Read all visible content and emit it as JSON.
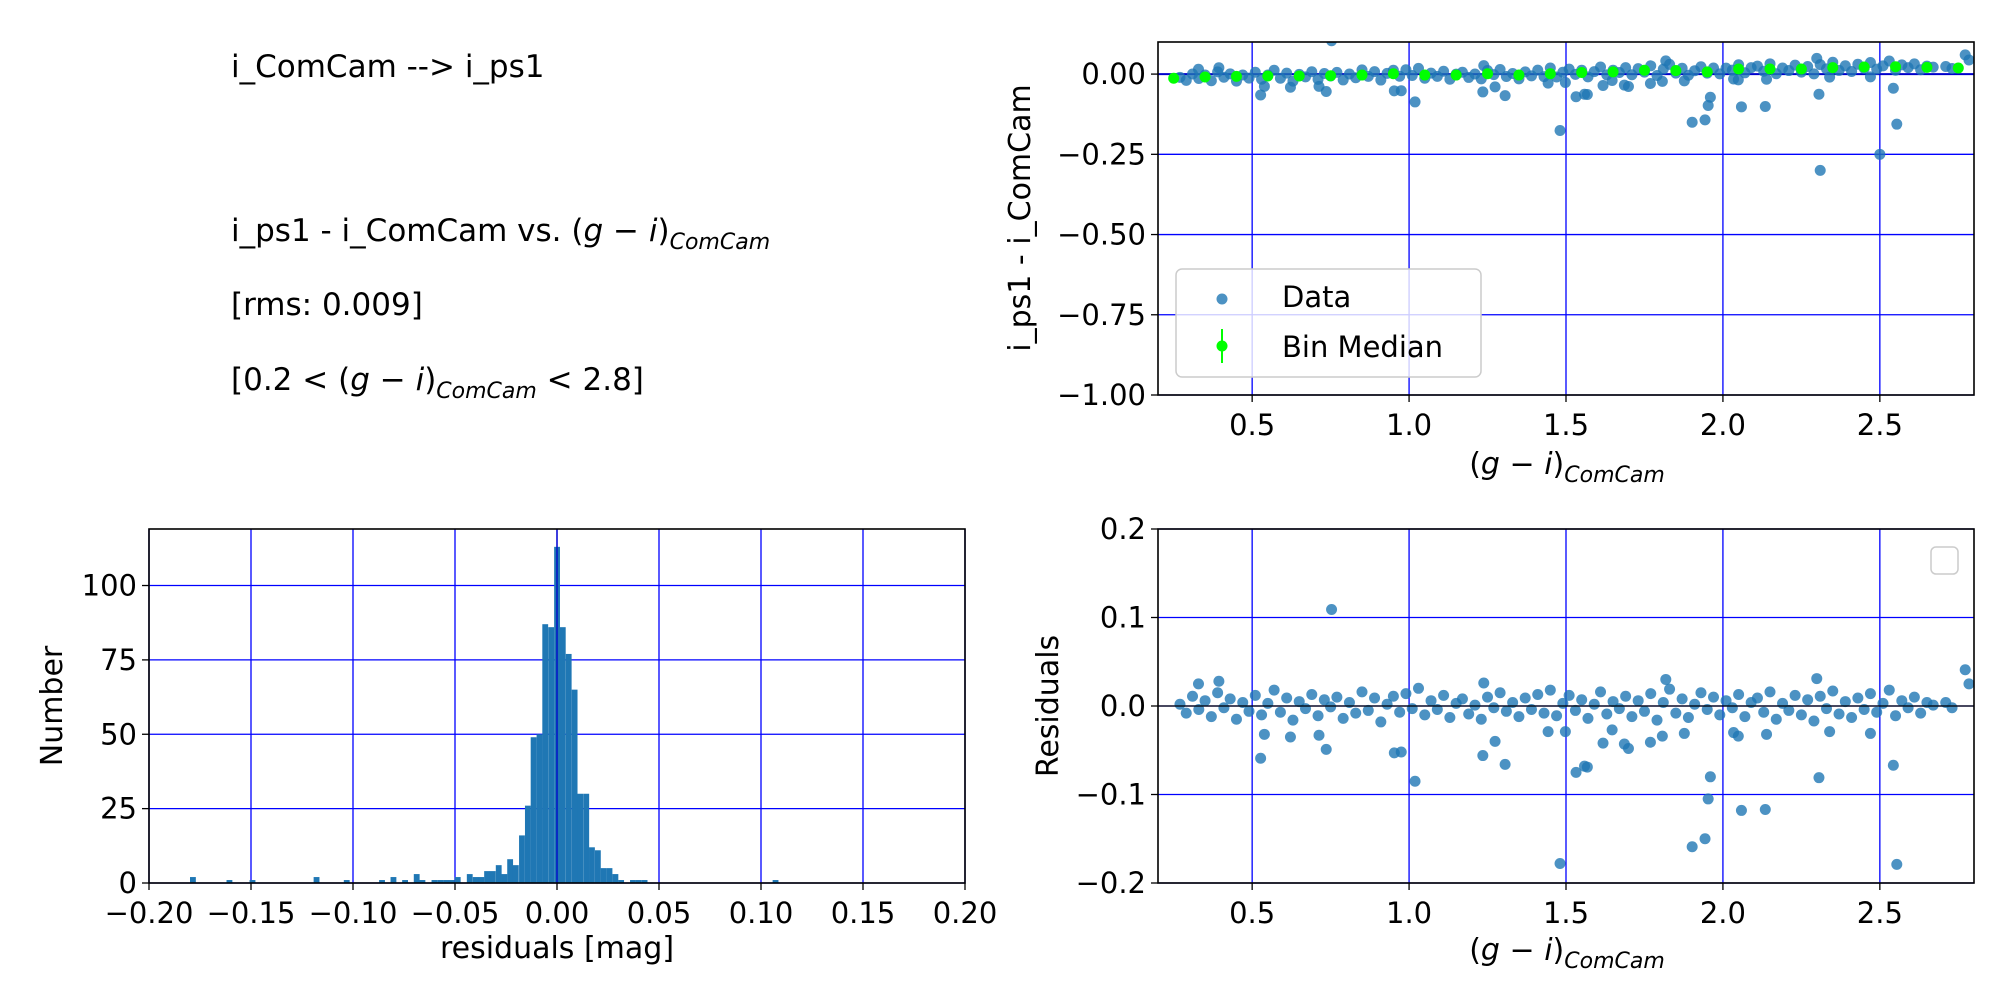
{
  "info_text": {
    "line1": "i_ComCam --> i_ps1",
    "line2_prefix": "i_ps1 - i_ComCam vs. ",
    "rms": "[rms: 0.009]",
    "range_prefix": "[0.2 < ",
    "range_suffix": " < 2.8]",
    "color_g": "g",
    "color_minus": " − ",
    "color_i": "i",
    "color_sub": "ComCam"
  },
  "colors": {
    "points": "#1f77b4",
    "median": "#00ff00",
    "grid": "#0000ff",
    "bars": "#1f77b4"
  },
  "chart_data": [
    {
      "type": "scatter",
      "panel": "top-right",
      "xlabel": "(g − i)ComCam",
      "ylabel": "i_ps1 - i_ComCam",
      "xlim": [
        0.2,
        2.8
      ],
      "ylim": [
        -1.0,
        0.1
      ],
      "xticks": [
        "0.5",
        "1.0",
        "1.5",
        "2.0",
        "2.5"
      ],
      "xtick_values": [
        0.5,
        1.0,
        1.5,
        2.0,
        2.5
      ],
      "yticks": [
        "0.00",
        "−0.25",
        "−0.50",
        "−0.75",
        "−1.00"
      ],
      "ytick_values": [
        0.0,
        -0.25,
        -0.5,
        -0.75,
        -1.0
      ],
      "grid": true,
      "legend": {
        "placement": "lower-left",
        "entries": [
          "Data",
          "Bin Median"
        ]
      },
      "bin_median": {
        "x": [
          0.25,
          0.35,
          0.45,
          0.55,
          0.65,
          0.75,
          0.85,
          0.95,
          1.05,
          1.15,
          1.25,
          1.35,
          1.45,
          1.55,
          1.65,
          1.75,
          1.85,
          1.95,
          2.05,
          2.15,
          2.25,
          2.35,
          2.45,
          2.55,
          2.65,
          2.75
        ],
        "y": [
          -0.013,
          -0.009,
          -0.007,
          -0.006,
          -0.006,
          -0.005,
          -0.003,
          0.001,
          -0.003,
          -0.003,
          0.001,
          -0.003,
          0.001,
          0.005,
          0.007,
          0.012,
          0.011,
          0.007,
          0.016,
          0.016,
          0.016,
          0.02,
          0.022,
          0.023,
          0.021,
          0.019
        ]
      },
      "extra_points": [
        [
          2.31,
          -0.3
        ],
        [
          2.5,
          -0.25
        ]
      ],
      "note": "Data points are the residual points below plus the bin median trend"
    },
    {
      "type": "bar",
      "panel": "bottom-left",
      "xlabel": "residuals [mag]",
      "ylabel": "Number",
      "xlim": [
        -0.2,
        0.2
      ],
      "ylim": [
        0,
        119
      ],
      "xticks": [
        "−0.20",
        "−0.15",
        "−0.10",
        "−0.05",
        "0.00",
        "0.05",
        "0.10",
        "0.15",
        "0.20"
      ],
      "xtick_values": [
        -0.2,
        -0.15,
        -0.1,
        -0.05,
        0.0,
        0.05,
        0.1,
        0.15,
        0.2
      ],
      "yticks": [
        "0",
        "25",
        "50",
        "75",
        "100"
      ],
      "ytick_values": [
        0,
        25,
        50,
        75,
        100
      ],
      "grid": true,
      "bin_width": 0.00286,
      "bin_left": [
        -0.1799,
        -0.162,
        -0.1507,
        -0.1193,
        -0.1045,
        -0.0872,
        -0.0816,
        -0.0759,
        -0.0702,
        -0.0674,
        -0.0615,
        -0.0586,
        -0.0558,
        -0.053,
        -0.0501,
        -0.0442,
        -0.0413,
        -0.0385,
        -0.0357,
        -0.0329,
        -0.03,
        -0.0272,
        -0.0244,
        -0.0216,
        -0.0186,
        -0.0157,
        -0.0129,
        -0.01,
        -0.0072,
        -0.0043,
        -0.0014,
        0.0014,
        0.0043,
        0.0072,
        0.01,
        0.0129,
        0.0157,
        0.0186,
        0.0214,
        0.0243,
        0.0272,
        0.03,
        0.0358,
        0.0386,
        0.0415,
        0.1057
      ],
      "counts": [
        2,
        1,
        1,
        2,
        1,
        1,
        2,
        1,
        3,
        1,
        1,
        1,
        1,
        1,
        2,
        3,
        2,
        2,
        4,
        4,
        6,
        3,
        8,
        6,
        16,
        26,
        49,
        50,
        87,
        86,
        113,
        86,
        77,
        65,
        30,
        30,
        12,
        11,
        5,
        5,
        3,
        1,
        1,
        1,
        1,
        1
      ]
    },
    {
      "type": "scatter",
      "panel": "bottom-right",
      "xlabel": "(g − i)ComCam",
      "ylabel": "Residuals",
      "xlim": [
        0.2,
        2.8
      ],
      "ylim": [
        -0.2,
        0.2
      ],
      "xticks": [
        "0.5",
        "1.0",
        "1.5",
        "2.0",
        "2.5"
      ],
      "xtick_values": [
        0.5,
        1.0,
        1.5,
        2.0,
        2.5
      ],
      "yticks": [
        "0.2",
        "0.1",
        "0.0",
        "−0.1",
        "−0.2"
      ],
      "ytick_values": [
        0.2,
        0.1,
        0.0,
        -0.1,
        -0.2
      ],
      "grid": true,
      "legend": {
        "placement": "upper-right",
        "entries": []
      },
      "points": [
        [
          0.753,
          0.109
        ],
        [
          0.527,
          -0.059
        ],
        [
          0.539,
          -0.032
        ],
        [
          0.622,
          -0.035
        ],
        [
          0.713,
          -0.033
        ],
        [
          0.736,
          -0.049
        ],
        [
          0.953,
          -0.053
        ],
        [
          0.975,
          -0.052
        ],
        [
          1.019,
          -0.085
        ],
        [
          1.235,
          -0.056
        ],
        [
          1.274,
          -0.04
        ],
        [
          1.306,
          -0.066
        ],
        [
          1.443,
          -0.029
        ],
        [
          1.481,
          -0.178
        ],
        [
          1.498,
          -0.029
        ],
        [
          1.532,
          -0.075
        ],
        [
          1.559,
          -0.068
        ],
        [
          1.568,
          -0.069
        ],
        [
          1.618,
          -0.042
        ],
        [
          1.647,
          -0.027
        ],
        [
          1.686,
          -0.043
        ],
        [
          1.699,
          -0.048
        ],
        [
          1.769,
          -0.041
        ],
        [
          1.807,
          -0.034
        ],
        [
          1.877,
          -0.031
        ],
        [
          1.902,
          -0.159
        ],
        [
          1.943,
          -0.15
        ],
        [
          1.953,
          -0.105
        ],
        [
          1.96,
          -0.08
        ],
        [
          2.034,
          -0.03
        ],
        [
          2.049,
          -0.034
        ],
        [
          2.059,
          -0.118
        ],
        [
          2.135,
          -0.117
        ],
        [
          2.139,
          -0.032
        ],
        [
          2.306,
          -0.081
        ],
        [
          2.34,
          -0.029
        ],
        [
          2.47,
          -0.031
        ],
        [
          2.543,
          -0.067
        ],
        [
          2.554,
          -0.179
        ],
        [
          2.772,
          0.041
        ],
        [
          2.784,
          0.025
        ],
        [
          2.299,
          0.031
        ],
        [
          1.818,
          0.03
        ],
        [
          0.394,
          0.028
        ],
        [
          1.238,
          0.026
        ],
        [
          0.329,
          0.025
        ],
        [
          0.27,
          0.002
        ],
        [
          0.29,
          -0.008
        ],
        [
          0.31,
          0.011
        ],
        [
          0.33,
          -0.004
        ],
        [
          0.35,
          0.006
        ],
        [
          0.37,
          -0.012
        ],
        [
          0.39,
          0.015
        ],
        [
          0.41,
          -0.002
        ],
        [
          0.43,
          0.008
        ],
        [
          0.45,
          -0.015
        ],
        [
          0.47,
          0.004
        ],
        [
          0.49,
          -0.006
        ],
        [
          0.51,
          0.012
        ],
        [
          0.53,
          -0.01
        ],
        [
          0.55,
          0.003
        ],
        [
          0.57,
          0.018
        ],
        [
          0.59,
          -0.007
        ],
        [
          0.61,
          0.009
        ],
        [
          0.63,
          -0.016
        ],
        [
          0.65,
          0.005
        ],
        [
          0.67,
          -0.003
        ],
        [
          0.69,
          0.013
        ],
        [
          0.71,
          -0.011
        ],
        [
          0.73,
          0.007
        ],
        [
          0.75,
          -0.001
        ],
        [
          0.77,
          0.01
        ],
        [
          0.79,
          -0.014
        ],
        [
          0.81,
          0.004
        ],
        [
          0.83,
          -0.008
        ],
        [
          0.85,
          0.016
        ],
        [
          0.87,
          -0.005
        ],
        [
          0.89,
          0.009
        ],
        [
          0.91,
          -0.018
        ],
        [
          0.93,
          0.002
        ],
        [
          0.95,
          0.011
        ],
        [
          0.97,
          -0.007
        ],
        [
          0.99,
          0.014
        ],
        [
          1.01,
          -0.003
        ],
        [
          1.03,
          0.02
        ],
        [
          1.05,
          -0.01
        ],
        [
          1.07,
          0.006
        ],
        [
          1.09,
          -0.004
        ],
        [
          1.11,
          0.012
        ],
        [
          1.13,
          -0.013
        ],
        [
          1.15,
          0.003
        ],
        [
          1.17,
          0.008
        ],
        [
          1.19,
          -0.009
        ],
        [
          1.21,
          0.001
        ],
        [
          1.23,
          -0.015
        ],
        [
          1.25,
          0.01
        ],
        [
          1.27,
          -0.002
        ],
        [
          1.29,
          0.015
        ],
        [
          1.31,
          -0.006
        ],
        [
          1.33,
          0.004
        ],
        [
          1.35,
          -0.012
        ],
        [
          1.37,
          0.009
        ],
        [
          1.39,
          -0.004
        ],
        [
          1.41,
          0.013
        ],
        [
          1.43,
          -0.008
        ],
        [
          1.45,
          0.018
        ],
        [
          1.47,
          -0.011
        ],
        [
          1.49,
          0.003
        ],
        [
          1.51,
          0.012
        ],
        [
          1.53,
          -0.005
        ],
        [
          1.55,
          0.007
        ],
        [
          1.57,
          -0.014
        ],
        [
          1.59,
          0.002
        ],
        [
          1.61,
          0.016
        ],
        [
          1.63,
          -0.009
        ],
        [
          1.65,
          0.005
        ],
        [
          1.67,
          -0.003
        ],
        [
          1.69,
          0.011
        ],
        [
          1.71,
          -0.012
        ],
        [
          1.73,
          0.006
        ],
        [
          1.75,
          -0.006
        ],
        [
          1.77,
          0.014
        ],
        [
          1.79,
          -0.016
        ],
        [
          1.81,
          0.004
        ],
        [
          1.83,
          0.019
        ],
        [
          1.85,
          -0.008
        ],
        [
          1.87,
          0.008
        ],
        [
          1.89,
          -0.013
        ],
        [
          1.91,
          0.002
        ],
        [
          1.93,
          0.015
        ],
        [
          1.95,
          -0.004
        ],
        [
          1.97,
          0.01
        ],
        [
          1.99,
          -0.01
        ],
        [
          2.01,
          0.006
        ],
        [
          2.03,
          -0.002
        ],
        [
          2.05,
          0.013
        ],
        [
          2.07,
          -0.012
        ],
        [
          2.09,
          0.004
        ],
        [
          2.11,
          0.009
        ],
        [
          2.13,
          -0.007
        ],
        [
          2.15,
          0.016
        ],
        [
          2.17,
          -0.015
        ],
        [
          2.19,
          0.003
        ],
        [
          2.21,
          -0.005
        ],
        [
          2.23,
          0.012
        ],
        [
          2.25,
          -0.01
        ],
        [
          2.27,
          0.007
        ],
        [
          2.29,
          -0.017
        ],
        [
          2.31,
          0.011
        ],
        [
          2.33,
          -0.003
        ],
        [
          2.35,
          0.017
        ],
        [
          2.37,
          -0.009
        ],
        [
          2.39,
          0.005
        ],
        [
          2.41,
          -0.013
        ],
        [
          2.43,
          0.009
        ],
        [
          2.45,
          -0.004
        ],
        [
          2.47,
          0.014
        ],
        [
          2.49,
          -0.007
        ],
        [
          2.51,
          0.003
        ],
        [
          2.53,
          0.018
        ],
        [
          2.55,
          -0.011
        ],
        [
          2.57,
          0.006
        ],
        [
          2.59,
          -0.002
        ],
        [
          2.61,
          0.01
        ],
        [
          2.63,
          -0.008
        ],
        [
          2.65,
          0.004
        ],
        [
          2.67,
          0.001
        ],
        [
          2.71,
          0.004
        ],
        [
          2.73,
          -0.002
        ]
      ]
    }
  ]
}
